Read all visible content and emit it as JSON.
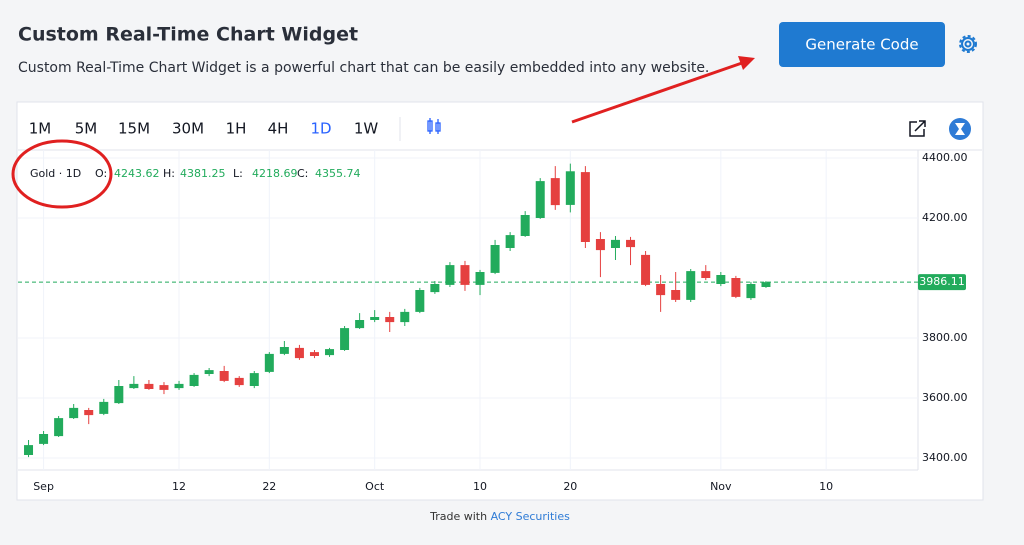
{
  "header": {
    "title": "Custom Real-Time Chart Widget",
    "subtitle": "Custom Real-Time Chart Widget is a powerful chart that can be easily embedded into any website.",
    "button": "Generate Code"
  },
  "toolbar": {
    "intervals": [
      "1M",
      "5M",
      "15M",
      "30M",
      "1H",
      "4H",
      "1D",
      "1W"
    ]
  },
  "footer": {
    "prefix": "Trade with",
    "link": "ACY Securities"
  },
  "chart_data": {
    "type": "candlestick",
    "symbol": "Gold · 1D",
    "ohlc_labels": [
      "O:",
      "H:",
      "L:",
      "C:"
    ],
    "hover_index": 36,
    "up_color": "#22ab5c",
    "down_color": "#e5403f",
    "grid": true,
    "categories": [
      null,
      "Sep",
      null,
      null,
      null,
      null,
      null,
      null,
      null,
      null,
      "12",
      null,
      null,
      null,
      null,
      null,
      "22",
      null,
      null,
      null,
      null,
      null,
      null,
      "Oct",
      null,
      null,
      null,
      null,
      null,
      null,
      "10",
      null,
      null,
      null,
      null,
      null,
      "20",
      null,
      null,
      null,
      null,
      null,
      null,
      null,
      null,
      null,
      "Nov",
      null,
      null,
      null,
      null,
      null,
      null,
      "10",
      null,
      null,
      null,
      null,
      null,
      null
    ],
    "open": [
      3410,
      3447,
      3473,
      3533,
      3560,
      3547,
      3583,
      3633,
      3647,
      3643,
      3633,
      3640,
      3680,
      3690,
      3667,
      3640,
      3687,
      3747,
      3767,
      3753,
      3743,
      3760,
      3833,
      3860,
      3870,
      3853,
      3887,
      3953,
      3977,
      4043,
      3977,
      4017,
      4100,
      4140,
      4200,
      4333,
      4243.62,
      4353,
      4130,
      4100,
      4127,
      4077,
      3980,
      3960,
      3927,
      4023,
      3980,
      4000,
      3933,
      3970,
      null,
      null,
      null,
      null,
      null,
      null,
      null,
      null,
      null,
      null
    ],
    "high": [
      3460,
      3490,
      3540,
      3580,
      3567,
      3597,
      3660,
      3673,
      3660,
      3653,
      3657,
      3683,
      3700,
      3707,
      3673,
      3690,
      3753,
      3790,
      3777,
      3760,
      3767,
      3840,
      3883,
      3893,
      3887,
      3897,
      3967,
      3990,
      4053,
      4057,
      4027,
      4127,
      4153,
      4223,
      4333,
      4373,
      4381.25,
      4373,
      4153,
      4140,
      4137,
      4090,
      4010,
      4020,
      4030,
      4043,
      4020,
      4007,
      3987,
      3990,
      null,
      null,
      null,
      null,
      null,
      null,
      null,
      null,
      null,
      null
    ],
    "low": [
      3403,
      3443,
      3470,
      3530,
      3513,
      3543,
      3580,
      3630,
      3627,
      3613,
      3627,
      3637,
      3673,
      3653,
      3637,
      3633,
      3683,
      3743,
      3727,
      3733,
      3737,
      3757,
      3830,
      3853,
      3820,
      3840,
      3883,
      3947,
      3970,
      3957,
      3943,
      4013,
      4090,
      4137,
      4197,
      4227,
      4218.69,
      4100,
      4003,
      4060,
      4043,
      3973,
      3887,
      3920,
      3920,
      3993,
      3973,
      3933,
      3927,
      3967,
      null,
      null,
      null,
      null,
      null,
      null,
      null,
      null,
      null,
      null
    ],
    "close": [
      3443,
      3480,
      3533,
      3567,
      3543,
      3587,
      3640,
      3647,
      3630,
      3627,
      3647,
      3677,
      3693,
      3657,
      3643,
      3683,
      3747,
      3770,
      3733,
      3740,
      3763,
      3833,
      3860,
      3870,
      3853,
      3887,
      3960,
      3980,
      4043,
      3977,
      4020,
      4110,
      4143,
      4210,
      4323,
      4243,
      4355.74,
      4120,
      4093,
      4127,
      4103,
      3977,
      3943,
      3927,
      4023,
      4000,
      4010,
      3937,
      3980,
      3986.11,
      null,
      null,
      null,
      null,
      null,
      null,
      null,
      null,
      null,
      null
    ],
    "last_price": 3986.11,
    "ylim": [
      3360,
      4410
    ],
    "yticks": [
      {
        "value": 3400,
        "label": "3400.00"
      },
      {
        "value": 3600,
        "label": "3600.00"
      },
      {
        "value": 3800,
        "label": "3800.00"
      },
      {
        "value": 4200,
        "label": "4200.00"
      },
      {
        "value": 4400,
        "label": "4400.00"
      }
    ]
  }
}
